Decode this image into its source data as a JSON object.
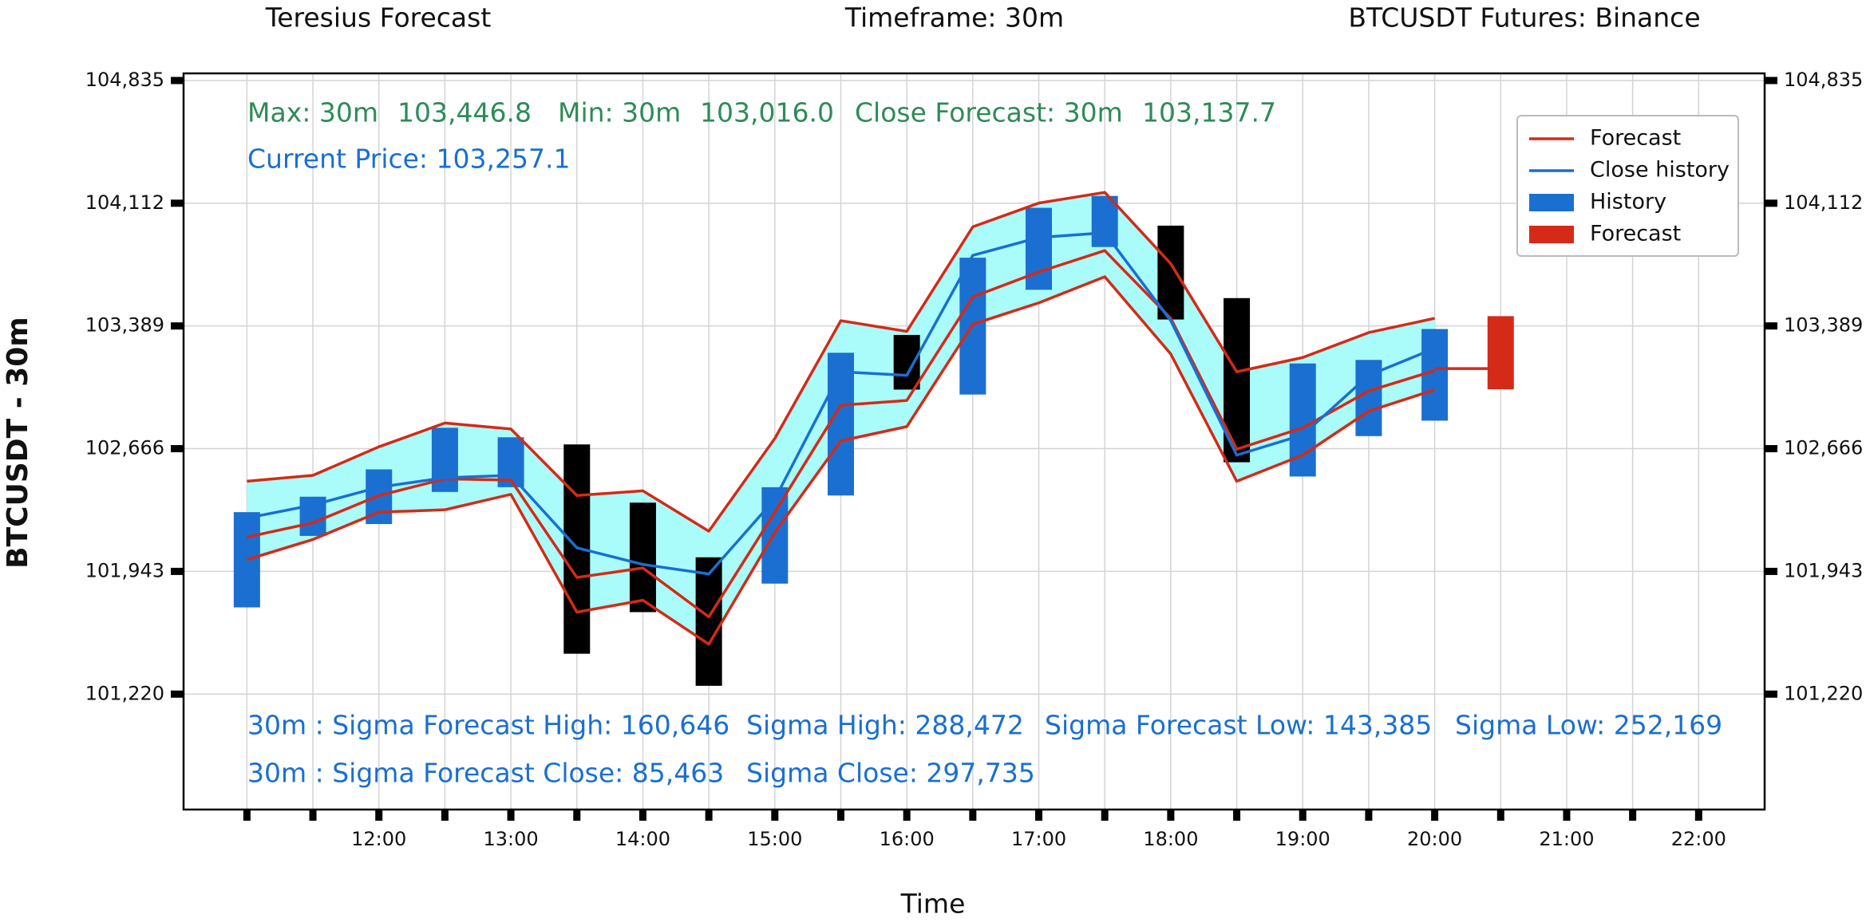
{
  "chart_data": {
    "type": "forecast",
    "header": [
      "Teresius Forecast",
      "Timeframe: 30m",
      "BTCUSDT Futures: Binance"
    ],
    "ylabel": "BTCUSDT - 30m",
    "xlabel": "Time",
    "ylim": [
      100540,
      104877
    ],
    "yticks": [
      {
        "value": 101220,
        "label": "101,220"
      },
      {
        "value": 101943,
        "label": "101,943"
      },
      {
        "value": 102666,
        "label": "102,666"
      },
      {
        "value": 103389,
        "label": "103,389"
      },
      {
        "value": 104112,
        "label": "104,112"
      },
      {
        "value": 104835,
        "label": "104,835"
      }
    ],
    "xlim": [
      10.52,
      22.5
    ],
    "xticks": [
      {
        "value": 11,
        "label": null
      },
      {
        "value": 11.5,
        "label": null
      },
      {
        "value": 12,
        "label": "12:00"
      },
      {
        "value": 12.5,
        "label": null
      },
      {
        "value": 13,
        "label": "13:00"
      },
      {
        "value": 13.5,
        "label": null
      },
      {
        "value": 14,
        "label": "14:00"
      },
      {
        "value": 14.5,
        "label": null
      },
      {
        "value": 15,
        "label": "15:00"
      },
      {
        "value": 15.5,
        "label": null
      },
      {
        "value": 16,
        "label": "16:00"
      },
      {
        "value": 16.5,
        "label": null
      },
      {
        "value": 17,
        "label": "17:00"
      },
      {
        "value": 17.5,
        "label": null
      },
      {
        "value": 18,
        "label": "18:00"
      },
      {
        "value": 18.5,
        "label": null
      },
      {
        "value": 19,
        "label": "19:00"
      },
      {
        "value": 19.5,
        "label": null
      },
      {
        "value": 20,
        "label": "20:00"
      },
      {
        "value": 20.5,
        "label": null
      },
      {
        "value": 21,
        "label": "21:00"
      },
      {
        "value": 21.5,
        "label": null
      },
      {
        "value": 22,
        "label": "22:00"
      }
    ],
    "grid": true,
    "legend": "upper right",
    "x": [
      11,
      11.5,
      12,
      12.5,
      13,
      13.5,
      14,
      14.5,
      15,
      15.5,
      16,
      16.5,
      17,
      17.5,
      18,
      18.5,
      19,
      19.5,
      20
    ],
    "series": [
      {
        "name": "Forecast",
        "kind": "line",
        "color": "#d42a17",
        "band_color": "#aafcfa",
        "values": [
          102145,
          102229,
          102390,
          102488,
          102481,
          101907,
          101963,
          101675,
          102292,
          102922,
          102950,
          103560,
          103707,
          103833,
          103434,
          102663,
          102789,
          103006,
          103126
        ],
        "upper": [
          102474,
          102509,
          102677,
          102817,
          102782,
          102390,
          102418,
          102180,
          102726,
          103420,
          103357,
          103973,
          104113,
          104176,
          103756,
          103119,
          103203,
          103350,
          103434
        ],
        "lower": [
          102012,
          102131,
          102292,
          102306,
          102397,
          101703,
          101773,
          101514,
          102173,
          102712,
          102796,
          103399,
          103525,
          103679,
          103224,
          102474,
          102628,
          102887,
          103013
        ],
        "close_x": [
          20,
          20.5
        ],
        "close_values": [
          103137.7,
          103137.7
        ]
      },
      {
        "name": "Close history",
        "kind": "line",
        "color": "#1a6fd1",
        "values": [
          102257,
          102334,
          102439,
          102495,
          102509,
          102082,
          101984,
          101928,
          102369,
          103119,
          103098,
          103805,
          103910,
          103938,
          103420,
          102628,
          102747,
          103098,
          103257.1
        ]
      },
      {
        "name": "History",
        "kind": "candle",
        "color": "#1a6fd1",
        "down_color": "#000000",
        "x": [
          11,
          11.5,
          12,
          12.5,
          13,
          13.5,
          14,
          14.5,
          15,
          15.5,
          16,
          16.5,
          17,
          17.5,
          18,
          18.5,
          19,
          19.5,
          20
        ],
        "open": [
          101731,
          102152,
          102222,
          102411,
          102439,
          102691,
          102348,
          102026,
          101871,
          102390,
          103336,
          102985,
          103602,
          103854,
          103980,
          103553,
          102502,
          102740,
          102831
        ],
        "close": [
          102292,
          102383,
          102544,
          102789,
          102733,
          101458,
          101703,
          101269,
          102439,
          103231,
          103014,
          103791,
          104085,
          104155,
          103427,
          102586,
          103168,
          103189,
          103371
        ]
      },
      {
        "name": "Forecast",
        "kind": "candle",
        "color": "#d42a17",
        "down_color": "#d42a17",
        "x": [
          20.5
        ],
        "open": [
          103016.0
        ],
        "close": [
          103446.8
        ]
      }
    ],
    "annotations": [
      {
        "text": "Max: 30m",
        "color": "#2e8b57"
      },
      {
        "text": "103,446.8",
        "color": "#2e8b57"
      },
      {
        "text": "Min: 30m",
        "color": "#2e8b57"
      },
      {
        "text": "103,016.0",
        "color": "#2e8b57"
      },
      {
        "text": "Close Forecast: 30m",
        "color": "#2e8b57"
      },
      {
        "text": "103,137.7",
        "color": "#2e8b57"
      },
      {
        "text": "Current Price: 103,257.1",
        "color": "#1a6fd1"
      },
      {
        "text": "30m : Sigma Forecast High: 160,646",
        "color": "#1a6fd1"
      },
      {
        "text": "Sigma High: 288,472",
        "color": "#1a6fd1"
      },
      {
        "text": "Sigma Forecast Low: 143,385",
        "color": "#1a6fd1"
      },
      {
        "text": "Sigma Low: 252,169",
        "color": "#1a6fd1"
      },
      {
        "text": "30m : Sigma Forecast Close: 85,463",
        "color": "#1a6fd1"
      },
      {
        "text": "Sigma Close: 297,735",
        "color": "#1a6fd1"
      }
    ]
  }
}
